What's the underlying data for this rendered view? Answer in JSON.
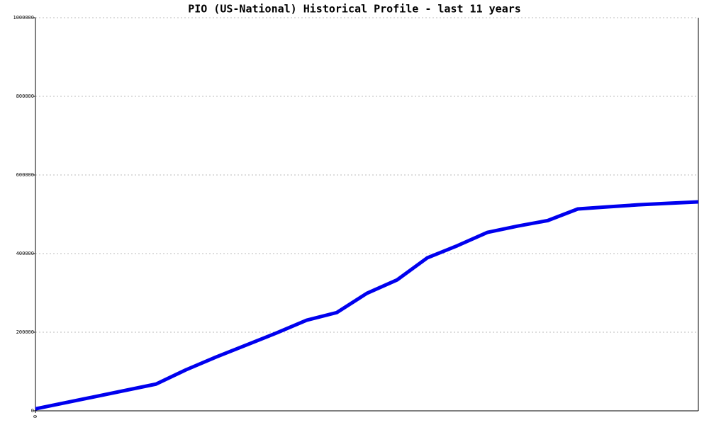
{
  "chart_data": {
    "type": "line",
    "title": "PIO (US-National) Historical Profile - last 11 years",
    "x": [
      0,
      4,
      5,
      6,
      7,
      8,
      9,
      10,
      11,
      12,
      13,
      14,
      15,
      16,
      17,
      18,
      19,
      20,
      21,
      22
    ],
    "series": [
      {
        "color": "#0000ee",
        "values": [
          5000,
          68000,
          104500,
          137000,
          167500,
          198000,
          230500,
          250000,
          299000,
          333000,
          389000,
          420000,
          454000,
          470000,
          484000,
          513500,
          519000,
          524000,
          528000,
          531500
        ]
      }
    ],
    "xlim": [
      0,
      22
    ],
    "xticks": [
      0
    ],
    "ylim": [
      0,
      1000000
    ],
    "yticks": [
      0,
      200000,
      400000,
      600000,
      800000,
      1000000
    ],
    "grid": true
  }
}
